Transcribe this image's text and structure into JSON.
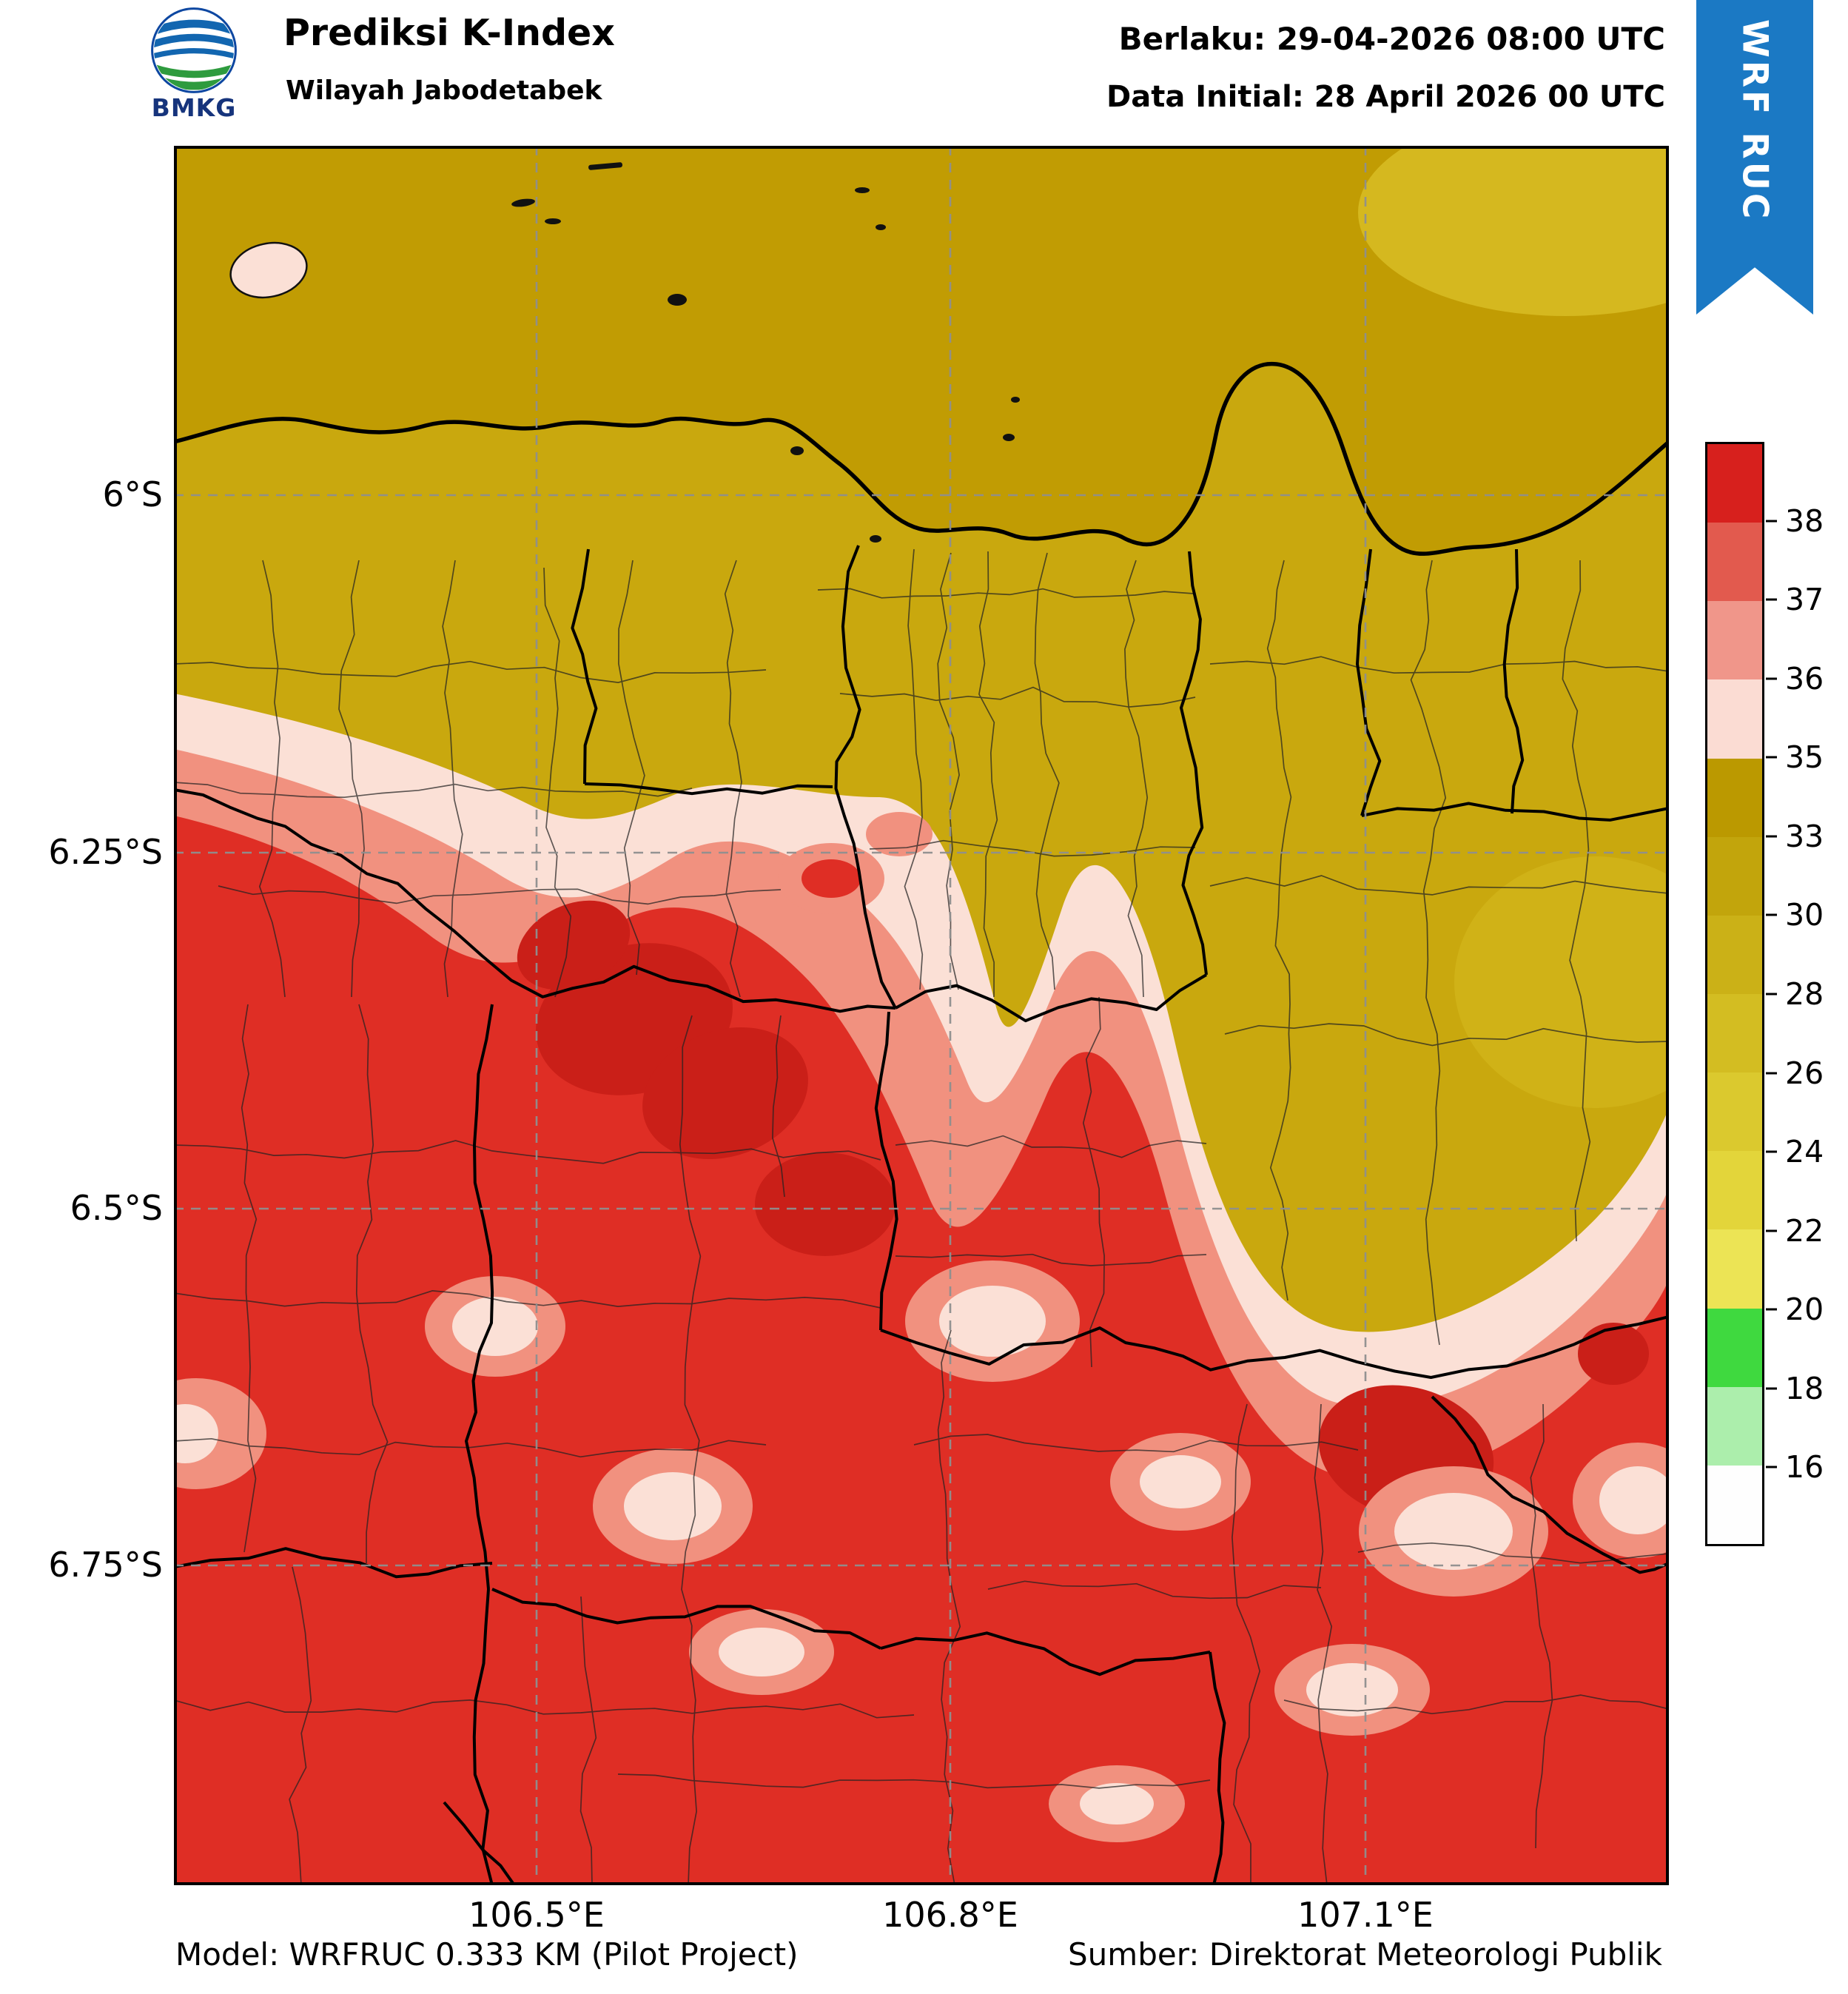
{
  "header": {
    "logo_text": "BMKG",
    "title": "Prediksi K-Index",
    "subtitle": "Wilayah Jabodetabek",
    "valid_line": "Berlaku: 29-04-2026 08:00 UTC",
    "init_line": "Data Initial: 28 April 2026 00 UTC",
    "ribbon_label": "WRF RUC",
    "ribbon_color": "#1b79c4"
  },
  "footer": {
    "model_line": "Model: WRFRUC 0.333 KM (Pilot Project)",
    "source_line": "Sumber: Direktorat Meteorologi Publik"
  },
  "map": {
    "x_ticks": [
      {
        "label": "106.5°E"
      },
      {
        "label": "106.8°E"
      },
      {
        "label": "107.1°E"
      }
    ],
    "y_ticks": [
      {
        "label": "6°S"
      },
      {
        "label": "6.25°S"
      },
      {
        "label": "6.5°S"
      },
      {
        "label": "6.75°S"
      }
    ]
  },
  "colorbar": {
    "ticks": [
      "38",
      "37",
      "36",
      "35",
      "33",
      "30",
      "28",
      "26",
      "24",
      "22",
      "20",
      "18",
      "16"
    ],
    "segments": [
      "#d7201d",
      "#e25a4e",
      "#f0968a",
      "#fbdcd3",
      "#bb9900",
      "#c2a50c",
      "#cbb117",
      "#d3bd22",
      "#dbc92e",
      "#e3d53a",
      "#ece455",
      "#3fd93f",
      "#aceeac",
      "#fefefe"
    ]
  },
  "chart_data": {
    "type": "heatmap",
    "title": "Prediksi K-Index — Wilayah Jabodetabek",
    "valid_time": "29-04-2026 08:00 UTC",
    "initial_time": "28 April 2026 00 UTC",
    "model": "WRFRUC 0.333 KM (Pilot Project)",
    "source": "Direktorat Meteorologi Publik",
    "x_tick_labels": [
      "106.5°E",
      "106.8°E",
      "107.1°E"
    ],
    "y_tick_labels": [
      "6°S",
      "6.25°S",
      "6.5°S",
      "6.75°S"
    ],
    "lon_range": [
      106.24,
      107.32
    ],
    "lat_range": [
      -6.97,
      -5.76
    ],
    "colorbar_levels_bottom_to_top": [
      16,
      18,
      20,
      22,
      24,
      26,
      28,
      30,
      33,
      35,
      36,
      37,
      38
    ],
    "colorbar_colors_top_to_bottom": [
      "#d7201d",
      "#e25a4e",
      "#f0968a",
      "#fbdcd3",
      "#bb9900",
      "#c2a50c",
      "#cbb117",
      "#d3bd22",
      "#dbc92e",
      "#e3d53a",
      "#ece455",
      "#3fd93f",
      "#aceeac",
      "#fefefe"
    ],
    "pattern_summary": "K-Index 30-35 (gold) over the Java Sea and northern Jabodetabek (Jakarta, Tangerang, Bekasi north); a 35-36 pale-pink transition band through the central belt; 36-38+ (salmon to red) covering the entire southern half (Depok/Bogor), with >38 cores south-center and southeast and scattered 35-36 pockets inside the red zone"
  }
}
